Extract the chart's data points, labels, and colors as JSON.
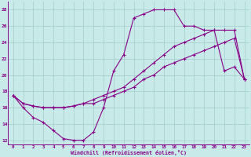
{
  "bg_color": "#c8eae8",
  "grid_color": "#a0cccc",
  "line_color": "#880088",
  "xlabel": "Windchill (Refroidissement éolien,°C)",
  "yticks": [
    12,
    14,
    16,
    18,
    20,
    22,
    24,
    26,
    28
  ],
  "xticks": [
    0,
    1,
    2,
    3,
    4,
    5,
    6,
    7,
    8,
    9,
    10,
    11,
    12,
    13,
    14,
    15,
    16,
    17,
    18,
    19,
    20,
    21,
    22,
    23
  ],
  "line1_x": [
    0,
    1,
    2,
    3,
    4,
    5,
    6,
    7,
    8,
    9,
    10,
    11,
    12,
    13,
    14,
    15,
    16,
    17,
    18,
    19,
    20,
    21,
    22,
    23
  ],
  "line1_y": [
    17.5,
    16.0,
    14.8,
    14.2,
    13.2,
    12.2,
    12.0,
    12.0,
    13.0,
    16.0,
    20.5,
    22.5,
    27.0,
    27.5,
    28.0,
    28.0,
    28.0,
    26.0,
    26.0,
    25.5,
    25.5,
    20.5,
    21.0,
    19.5
  ],
  "line2_x": [
    0,
    1,
    2,
    3,
    4,
    5,
    6,
    7,
    8,
    9,
    10,
    11,
    12,
    13,
    14,
    15,
    16,
    17,
    18,
    19,
    20,
    21,
    22,
    23
  ],
  "line2_y": [
    17.5,
    16.5,
    16.2,
    16.0,
    16.0,
    16.0,
    16.2,
    16.5,
    17.0,
    17.5,
    18.0,
    18.5,
    19.5,
    20.5,
    21.5,
    22.5,
    23.5,
    24.0,
    24.5,
    25.0,
    25.5,
    25.5,
    25.5,
    19.5
  ],
  "line3_x": [
    0,
    1,
    2,
    3,
    4,
    5,
    6,
    7,
    8,
    9,
    10,
    11,
    12,
    13,
    14,
    15,
    16,
    17,
    18,
    19,
    20,
    21,
    22,
    23
  ],
  "line3_y": [
    17.5,
    16.5,
    16.2,
    16.0,
    16.0,
    16.0,
    16.2,
    16.5,
    16.5,
    17.0,
    17.5,
    18.0,
    18.5,
    19.5,
    20.0,
    21.0,
    21.5,
    22.0,
    22.5,
    23.0,
    23.5,
    24.0,
    24.5,
    19.5
  ]
}
